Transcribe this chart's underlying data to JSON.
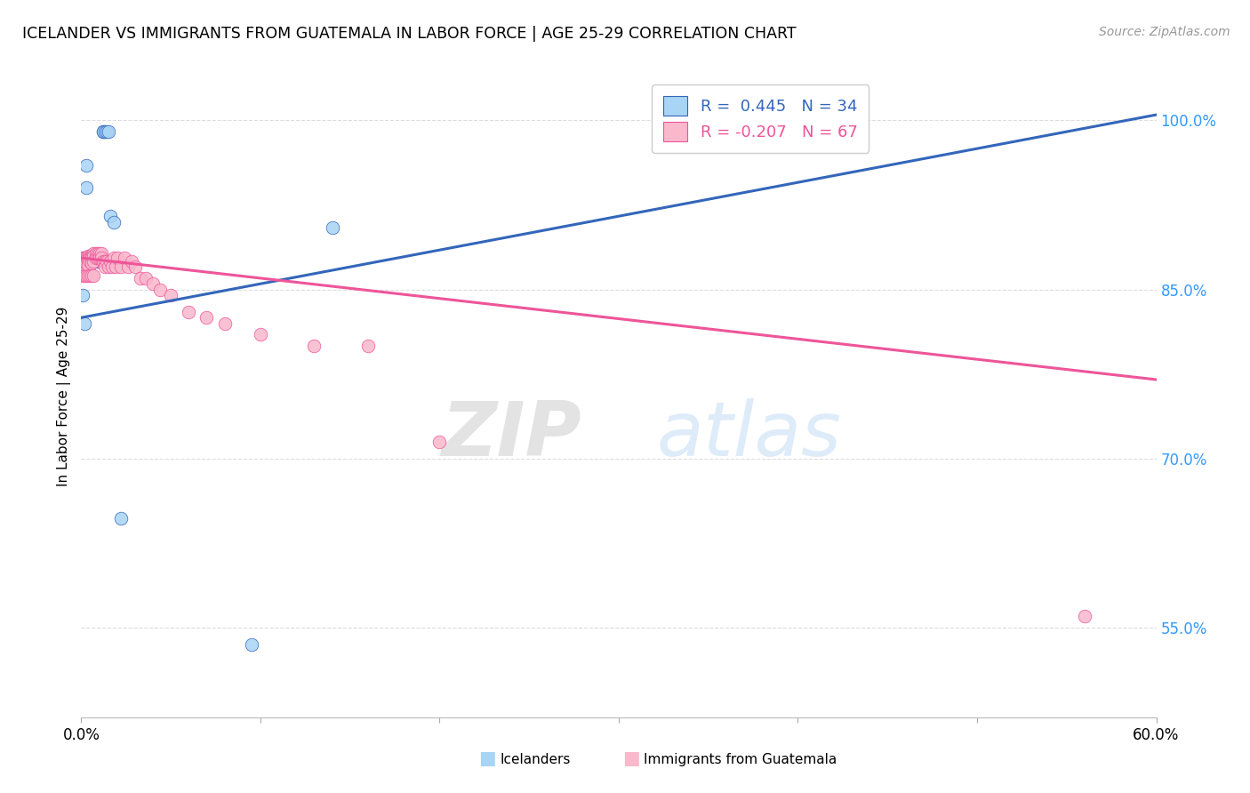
{
  "title": "ICELANDER VS IMMIGRANTS FROM GUATEMALA IN LABOR FORCE | AGE 25-29 CORRELATION CHART",
  "source": "Source: ZipAtlas.com",
  "ylabel": "In Labor Force | Age 25-29",
  "yticks": [
    0.55,
    0.7,
    0.85,
    1.0
  ],
  "ytick_labels": [
    "55.0%",
    "70.0%",
    "85.0%",
    "100.0%"
  ],
  "xlim": [
    0.0,
    0.6
  ],
  "ylim": [
    0.47,
    1.04
  ],
  "legend_R_blue": "0.445",
  "legend_N_blue": "34",
  "legend_R_pink": "-0.207",
  "legend_N_pink": "67",
  "blue_color": "#a8d4f5",
  "pink_color": "#f9b8cc",
  "blue_line_color": "#3366bb",
  "pink_line_color": "#ee5599",
  "watermark_zip": "ZIP",
  "watermark_atlas": "atlas",
  "blue_trend_x": [
    0.0,
    0.6
  ],
  "blue_trend_y": [
    0.825,
    1.005
  ],
  "pink_trend_x": [
    0.0,
    0.6
  ],
  "pink_trend_y": [
    0.878,
    0.77
  ],
  "blue_scatter_x": [
    0.001,
    0.001,
    0.001,
    0.001,
    0.001,
    0.002,
    0.002,
    0.003,
    0.003,
    0.004,
    0.004,
    0.004,
    0.005,
    0.005,
    0.006,
    0.006,
    0.007,
    0.007,
    0.008,
    0.009,
    0.009,
    0.01,
    0.01,
    0.011,
    0.012,
    0.012,
    0.013,
    0.014,
    0.015,
    0.016,
    0.018,
    0.022,
    0.095,
    0.14
  ],
  "blue_scatter_y": [
    0.878,
    0.876,
    0.873,
    0.869,
    0.845,
    0.868,
    0.82,
    0.96,
    0.94,
    0.878,
    0.875,
    0.872,
    0.878,
    0.875,
    0.878,
    0.875,
    0.878,
    0.875,
    0.878,
    0.878,
    0.875,
    0.878,
    0.875,
    0.878,
    0.99,
    0.99,
    0.99,
    0.99,
    0.99,
    0.915,
    0.91,
    0.647,
    0.535,
    0.905
  ],
  "pink_scatter_x": [
    0.001,
    0.001,
    0.001,
    0.001,
    0.001,
    0.001,
    0.002,
    0.002,
    0.002,
    0.002,
    0.003,
    0.003,
    0.003,
    0.003,
    0.004,
    0.004,
    0.004,
    0.004,
    0.004,
    0.005,
    0.005,
    0.005,
    0.005,
    0.006,
    0.006,
    0.006,
    0.006,
    0.007,
    0.007,
    0.007,
    0.007,
    0.008,
    0.008,
    0.009,
    0.009,
    0.01,
    0.01,
    0.011,
    0.011,
    0.012,
    0.013,
    0.013,
    0.014,
    0.015,
    0.016,
    0.017,
    0.018,
    0.019,
    0.02,
    0.022,
    0.024,
    0.026,
    0.028,
    0.03,
    0.033,
    0.036,
    0.04,
    0.044,
    0.05,
    0.06,
    0.07,
    0.08,
    0.1,
    0.13,
    0.16,
    0.2,
    0.56
  ],
  "pink_scatter_y": [
    0.878,
    0.876,
    0.875,
    0.872,
    0.87,
    0.862,
    0.878,
    0.875,
    0.872,
    0.862,
    0.878,
    0.876,
    0.873,
    0.862,
    0.88,
    0.877,
    0.875,
    0.872,
    0.862,
    0.88,
    0.878,
    0.875,
    0.862,
    0.88,
    0.878,
    0.873,
    0.862,
    0.882,
    0.88,
    0.875,
    0.862,
    0.882,
    0.878,
    0.882,
    0.878,
    0.882,
    0.878,
    0.882,
    0.878,
    0.875,
    0.875,
    0.87,
    0.875,
    0.87,
    0.875,
    0.87,
    0.878,
    0.87,
    0.878,
    0.87,
    0.878,
    0.87,
    0.875,
    0.87,
    0.86,
    0.86,
    0.855,
    0.85,
    0.845,
    0.83,
    0.825,
    0.82,
    0.81,
    0.8,
    0.8,
    0.715,
    0.56
  ]
}
